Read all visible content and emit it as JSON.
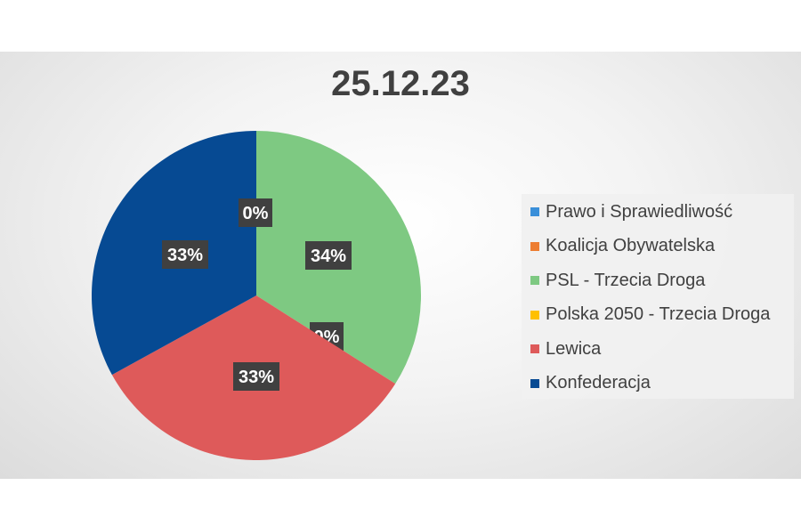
{
  "chart_data": {
    "type": "pie",
    "title": "25.12.23",
    "slices": [
      {
        "name": "Prawo i Sprawiedliwość",
        "value": 0,
        "label": "",
        "color": "#3a8fd9"
      },
      {
        "name": "Koalicja Obywatelska",
        "value": 0,
        "label": "",
        "color": "#ed7d31"
      },
      {
        "name": "PSL - Trzecia Droga",
        "value": 34,
        "label": "34%",
        "color": "#7ec982"
      },
      {
        "name": "Polska 2050 - Trzecia Droga",
        "value": 0,
        "label": "0%",
        "color": "#ffc000"
      },
      {
        "name": "Lewica",
        "value": 33,
        "label": "33%",
        "color": "#de5a5a"
      },
      {
        "name": "Konfederacja",
        "value": 33,
        "label": "33%",
        "color": "#064a93"
      }
    ],
    "extra_labels": [
      "0%"
    ],
    "legend_position": "right"
  }
}
